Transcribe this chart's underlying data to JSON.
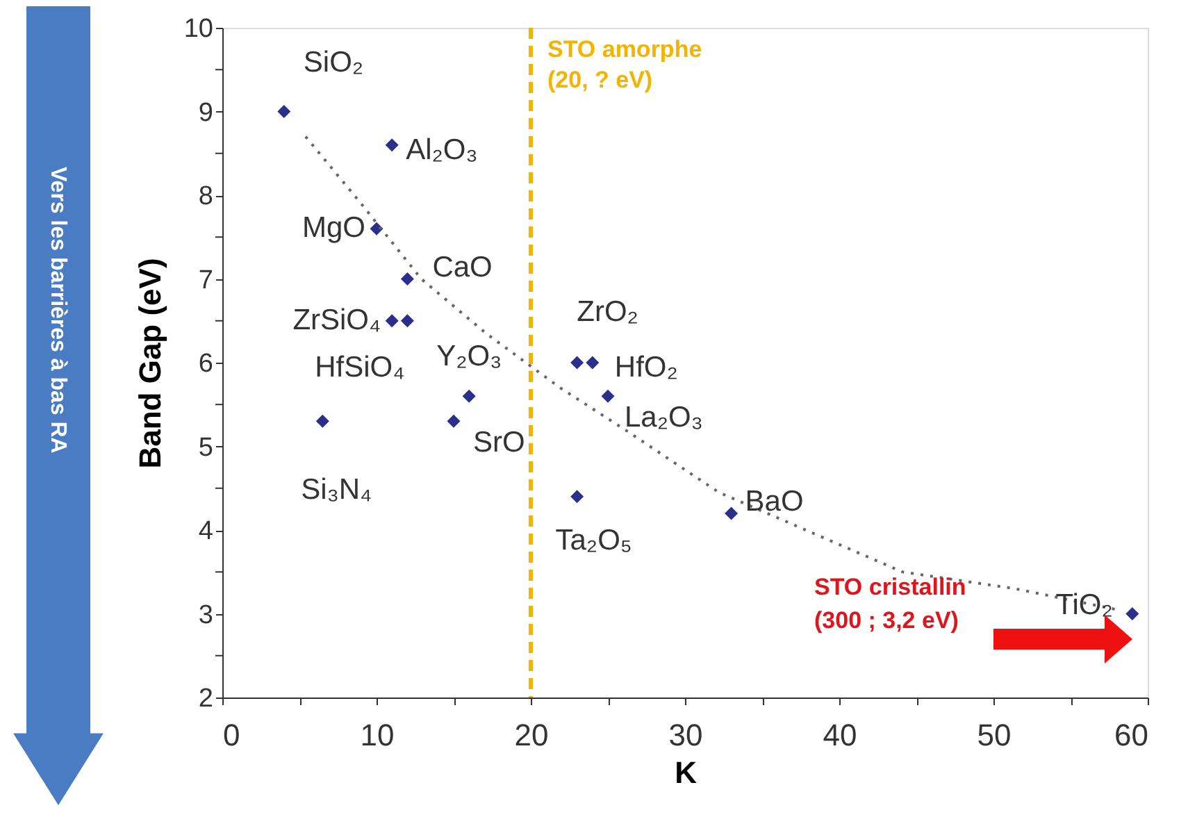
{
  "chart_data": {
    "type": "scatter",
    "xlabel": "K",
    "ylabel": "Band Gap (eV)",
    "xlim": [
      0,
      60
    ],
    "ylim": [
      2,
      10
    ],
    "xticks": [
      0,
      {
        "value": 5,
        "label": null
      },
      10,
      {
        "value": 15,
        "label": null
      },
      20,
      {
        "value": 25,
        "label": null
      },
      30,
      {
        "value": 35,
        "label": null
      },
      40,
      {
        "value": 45,
        "label": null
      },
      50,
      {
        "value": 55,
        "label": null
      },
      60
    ],
    "yticks": [
      2,
      {
        "value": 2.5,
        "label": null
      },
      3,
      {
        "value": 3.5,
        "label": null
      },
      4,
      {
        "value": 4.5,
        "label": null
      },
      5,
      {
        "value": 5.5,
        "label": null
      },
      6,
      {
        "value": 6.5,
        "label": null
      },
      7,
      {
        "value": 7.5,
        "label": null
      },
      8,
      {
        "value": 8.5,
        "label": null
      },
      9,
      {
        "value": 9.5,
        "label": null
      },
      10
    ],
    "grid": false,
    "series": [
      {
        "marker": "diamond",
        "color": "#2b2f8c",
        "x": [
          4,
          11,
          10,
          12,
          11,
          12,
          16,
          6.5,
          15,
          23,
          24,
          25,
          23,
          33,
          59
        ],
        "values": [
          9.0,
          8.6,
          7.6,
          7.0,
          6.5,
          6.5,
          5.6,
          5.3,
          5.3,
          6.0,
          6.0,
          5.6,
          4.4,
          4.2,
          3.0
        ]
      },
      {
        "type": "line",
        "line_style": "dotted",
        "color": "#666666",
        "x": [
          5.4,
          9,
          12.9,
          17.1,
          21.9,
          26.1,
          32.2,
          44.1,
          51.4,
          58
        ],
        "values": [
          8.7,
          7.9,
          7.0,
          6.35,
          5.7,
          5.2,
          4.45,
          3.5,
          3.3,
          3.05
        ]
      }
    ],
    "ref_lines": [
      {
        "axis": "x",
        "value": 20,
        "label": "STO amorphe\n(20, ? eV)",
        "color": "#f2b400",
        "line_style": "dashed"
      }
    ],
    "annotations": [
      {
        "text": "SiO₂",
        "x": 4,
        "y": 9.0
      },
      {
        "text": "Al₂O₃",
        "x": 11,
        "y": 8.6
      },
      {
        "text": "MgO",
        "x": 10,
        "y": 7.6
      },
      {
        "text": "CaO",
        "x": 12,
        "y": 7.0
      },
      {
        "text": "ZrSiO₄",
        "x": 11,
        "y": 6.5
      },
      {
        "text": "HfSiO₄",
        "x": 12,
        "y": 6.5
      },
      {
        "text": "Y₂O₃",
        "x": 16,
        "y": 5.6
      },
      {
        "text": "Si₃N₄",
        "x": 6.5,
        "y": 5.3
      },
      {
        "text": "SrO",
        "x": 15,
        "y": 5.3
      },
      {
        "text": "ZrO₂",
        "x": 23,
        "y": 6.0
      },
      {
        "text": "HfO₂",
        "x": 24,
        "y": 6.0
      },
      {
        "text": "La₂O₃",
        "x": 25,
        "y": 5.6
      },
      {
        "text": "Ta₂O₅",
        "x": 23,
        "y": 4.4
      },
      {
        "text": "BaO",
        "x": 33,
        "y": 4.2
      },
      {
        "text": "TiO₂",
        "x": 59,
        "y": 3.0
      },
      "STO cristallin\n(300 ; 3,2 eV)",
      "Vers les barrières à bas RA"
    ]
  }
}
